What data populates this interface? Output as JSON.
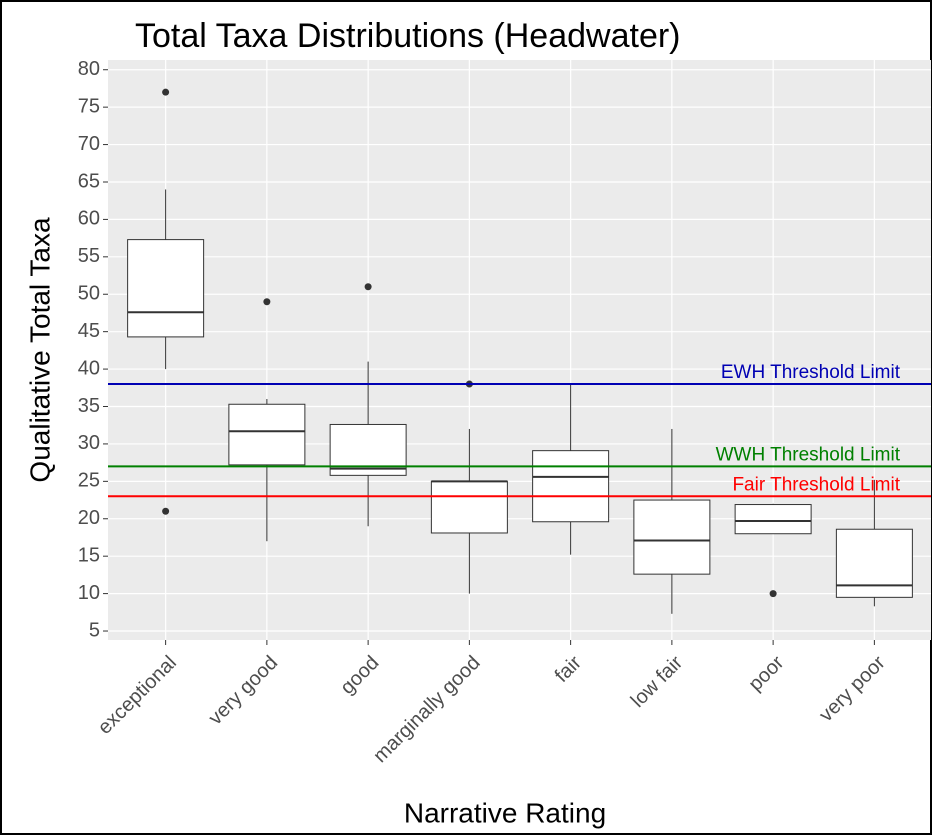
{
  "chart_data": {
    "type": "box",
    "title": "Total Taxa Distributions (Headwater)",
    "xlabel": "Narrative Rating",
    "ylabel": "Qualitative Total Taxa",
    "categories": [
      "exceptional",
      "very good",
      "good",
      "marginally good",
      "fair",
      "low fair",
      "poor",
      "very poor"
    ],
    "boxes": [
      {
        "min": 40,
        "q1": 44.3,
        "median": 47.6,
        "q3": 57.3,
        "max": 64,
        "outliers": [
          77,
          21
        ]
      },
      {
        "min": 17,
        "q1": 27.2,
        "median": 31.7,
        "q3": 35.3,
        "max": 36,
        "outliers": [
          49
        ]
      },
      {
        "min": 19,
        "q1": 25.8,
        "median": 26.7,
        "q3": 32.6,
        "max": 41,
        "outliers": [
          51
        ]
      },
      {
        "min": 10,
        "q1": 18.1,
        "median": 25,
        "q3": 25,
        "max": 32,
        "outliers": [
          38
        ]
      },
      {
        "min": 15.2,
        "q1": 19.6,
        "median": 25.6,
        "q3": 29.1,
        "max": 38,
        "outliers": []
      },
      {
        "min": 7.3,
        "q1": 12.6,
        "median": 17.1,
        "q3": 22.5,
        "max": 32,
        "outliers": []
      },
      {
        "min": 18,
        "q1": 18,
        "median": 19.7,
        "q3": 21.9,
        "max": 22,
        "outliers": [
          10
        ]
      },
      {
        "min": 8.3,
        "q1": 9.5,
        "median": 11.1,
        "q3": 18.6,
        "max": 25.2,
        "outliers": []
      }
    ],
    "lines": [
      {
        "name": "EWH Threshold Limit",
        "value": 38,
        "color": "#0000b3"
      },
      {
        "name": "WWH Threshold Limit",
        "value": 27,
        "color": "#008000"
      },
      {
        "name": "Fair Threshold Limit",
        "value": 23,
        "color": "#ff0000"
      }
    ],
    "ylim": [
      3.8,
      81.3
    ],
    "yticks": [
      5,
      10,
      15,
      20,
      25,
      30,
      35,
      40,
      45,
      50,
      55,
      60,
      65,
      70,
      75,
      80
    ],
    "grid": true
  }
}
